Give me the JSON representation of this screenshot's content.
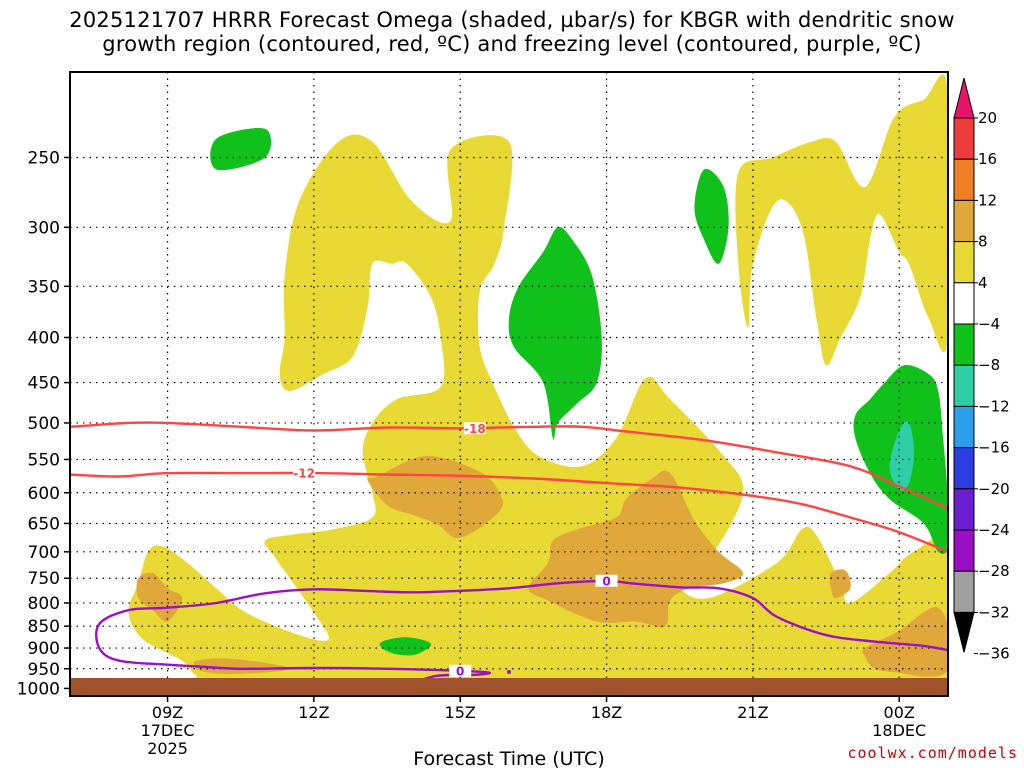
{
  "title_line1": "2025121707 HRRR Forecast Omega (shaded, µbar/s) for KBGR with dendritic snow",
  "title_line2": "growth region (contoured, red, ºC) and freezing level (contoured, purple, ºC)",
  "credit": "coolwx.com/models",
  "colors": {
    "yellow": "#e8d935",
    "orange_light": "#e0a83a",
    "green": "#11c11b",
    "teal": "#2ecfa6",
    "dsgz_red": "#ff4444",
    "freezing_purple": "#9b10c6",
    "ground": "#a0522d"
  },
  "chart_data": {
    "type": "heatmap",
    "title": "2025121707 HRRR Forecast Omega (shaded, µbar/s) for KBGR with dendritic snow growth region (contoured, red, ºC) and freezing level (contoured, purple, ºC)",
    "xlabel": "Forecast Time (UTC)",
    "ylabel": "",
    "x_range_hours": [
      7,
      25
    ],
    "y_range_hpa": [
      200,
      1020
    ],
    "y_scale": "log-pressure",
    "grid": true,
    "yticks": [
      250,
      300,
      350,
      400,
      450,
      500,
      550,
      600,
      650,
      700,
      750,
      800,
      850,
      900,
      950,
      1000
    ],
    "xticks": [
      {
        "hour": 9,
        "label": "09Z",
        "sub1": "17DEC",
        "sub2": "2025"
      },
      {
        "hour": 12,
        "label": "12Z",
        "sub1": "",
        "sub2": ""
      },
      {
        "hour": 15,
        "label": "15Z",
        "sub1": "",
        "sub2": ""
      },
      {
        "hour": 18,
        "label": "18Z",
        "sub1": "",
        "sub2": ""
      },
      {
        "hour": 21,
        "label": "21Z",
        "sub1": "",
        "sub2": ""
      },
      {
        "hour": 24,
        "label": "00Z",
        "sub1": "18DEC",
        "sub2": ""
      }
    ],
    "colorbar": {
      "labels": [
        "20",
        "16",
        "12",
        "8",
        "4",
        "−4",
        "−8",
        "−12",
        "−16",
        "−20",
        "−24",
        "−28",
        "−32",
        "−36"
      ],
      "colors": [
        "#e8146c",
        "#ee3b3b",
        "#ef7f24",
        "#e0a83a",
        "#e8d935",
        "#ffffff",
        "#11c11b",
        "#2ecfa6",
        "#2a9ee8",
        "#2b3fe0",
        "#6a1ed0",
        "#9b10c6",
        "#a0a0a0",
        "#000000"
      ]
    },
    "regions": [
      {
        "name": "omega 4-8",
        "color": "yellow",
        "points": [
          [
            11.4,
            340
          ],
          [
            11.7,
            280
          ],
          [
            12.5,
            240
          ],
          [
            13.2,
            240
          ],
          [
            14.0,
            280
          ],
          [
            14.8,
            295
          ],
          [
            14.8,
            245
          ],
          [
            16.0,
            240
          ],
          [
            15.9,
            300
          ],
          [
            15.7,
            330
          ],
          [
            15.4,
            355
          ],
          [
            15.4,
            410
          ],
          [
            15.7,
            455
          ],
          [
            16.1,
            505
          ],
          [
            16.6,
            545
          ],
          [
            17.5,
            560
          ],
          [
            18.2,
            520
          ],
          [
            18.8,
            445
          ],
          [
            19.3,
            470
          ],
          [
            20.4,
            545
          ],
          [
            20.8,
            600
          ],
          [
            20.2,
            700
          ],
          [
            19.5,
            760
          ],
          [
            20.1,
            790
          ],
          [
            21.5,
            720
          ],
          [
            22.0,
            660
          ],
          [
            22.3,
            670
          ],
          [
            22.8,
            760
          ],
          [
            23.0,
            800
          ],
          [
            23.8,
            740
          ],
          [
            24.3,
            700
          ],
          [
            25.0,
            690
          ],
          [
            25.0,
            1000
          ],
          [
            10.2,
            1000
          ],
          [
            9.6,
            968
          ],
          [
            9.3,
            930
          ],
          [
            8.5,
            880
          ],
          [
            8.2,
            820
          ],
          [
            8.4,
            760
          ],
          [
            8.6,
            700
          ],
          [
            8.9,
            690
          ],
          [
            9.4,
            720
          ],
          [
            10.0,
            770
          ],
          [
            10.6,
            820
          ],
          [
            11.7,
            870
          ],
          [
            12.3,
            880
          ],
          [
            12.0,
            820
          ],
          [
            11.2,
            710
          ],
          [
            11.0,
            680
          ],
          [
            11.5,
            670
          ],
          [
            12.4,
            660
          ],
          [
            13.2,
            640
          ],
          [
            13.2,
            600
          ],
          [
            13.0,
            540
          ],
          [
            13.2,
            500
          ],
          [
            13.7,
            470
          ],
          [
            14.6,
            455
          ],
          [
            14.6,
            400
          ],
          [
            14.4,
            360
          ],
          [
            13.9,
            330
          ],
          [
            13.6,
            330
          ],
          [
            13.2,
            330
          ],
          [
            13.1,
            370
          ],
          [
            12.8,
            420
          ],
          [
            12.2,
            440
          ],
          [
            11.5,
            460
          ],
          [
            11.3,
            440
          ],
          [
            11.4,
            400
          ]
        ]
      },
      {
        "name": "omega 4-8",
        "color": "yellow",
        "points": [
          [
            20.7,
            260
          ],
          [
            21.4,
            250
          ],
          [
            22.2,
            240
          ],
          [
            22.7,
            240
          ],
          [
            23.3,
            270
          ],
          [
            23.9,
            225
          ],
          [
            24.5,
            215
          ],
          [
            25.0,
            210
          ],
          [
            25.0,
            400
          ],
          [
            24.6,
            380
          ],
          [
            24.2,
            330
          ],
          [
            24.0,
            320
          ],
          [
            23.6,
            290
          ],
          [
            23.4,
            310
          ],
          [
            23.2,
            360
          ],
          [
            22.8,
            400
          ],
          [
            22.5,
            430
          ],
          [
            22.3,
            380
          ],
          [
            22.0,
            300
          ],
          [
            21.5,
            280
          ],
          [
            21.0,
            330
          ],
          [
            20.9,
            390
          ],
          [
            20.7,
            330
          ]
        ]
      },
      {
        "name": "omega 8-12",
        "color": "orange_light",
        "points": [
          [
            13.1,
            580
          ],
          [
            13.3,
            575
          ],
          [
            14.3,
            545
          ],
          [
            15.4,
            568
          ],
          [
            15.8,
            600
          ],
          [
            15.8,
            630
          ],
          [
            15.0,
            675
          ],
          [
            14.5,
            650
          ],
          [
            14.0,
            635
          ],
          [
            13.5,
            620
          ]
        ]
      },
      {
        "name": "omega 8-12",
        "color": "orange_light",
        "points": [
          [
            16.9,
            680
          ],
          [
            17.4,
            660
          ],
          [
            18.2,
            640
          ],
          [
            18.4,
            610
          ],
          [
            18.9,
            580
          ],
          [
            19.3,
            570
          ],
          [
            19.8,
            645
          ],
          [
            20.3,
            700
          ],
          [
            20.8,
            740
          ],
          [
            20.4,
            760
          ],
          [
            19.7,
            770
          ],
          [
            19.3,
            795
          ],
          [
            19.2,
            850
          ],
          [
            18.6,
            840
          ],
          [
            17.8,
            840
          ],
          [
            16.8,
            795
          ],
          [
            16.4,
            770
          ],
          [
            16.8,
            720
          ]
        ]
      },
      {
        "name": "omega 8-12",
        "color": "orange_light",
        "points": [
          [
            8.4,
            750
          ],
          [
            8.7,
            740
          ],
          [
            9.0,
            770
          ],
          [
            9.3,
            790
          ],
          [
            9.0,
            840
          ],
          [
            8.7,
            815
          ],
          [
            8.4,
            790
          ]
        ]
      },
      {
        "name": "omega 8-12",
        "color": "orange_light",
        "points": [
          [
            9.6,
            930
          ],
          [
            10.2,
            925
          ],
          [
            11.0,
            935
          ],
          [
            11.5,
            950
          ],
          [
            10.9,
            960
          ],
          [
            10.0,
            962
          ],
          [
            9.6,
            950
          ]
        ]
      },
      {
        "name": "omega 8-12",
        "color": "orange_light",
        "points": [
          [
            22.6,
            740
          ],
          [
            22.9,
            735
          ],
          [
            23.0,
            770
          ],
          [
            22.7,
            790
          ],
          [
            22.6,
            770
          ]
        ]
      },
      {
        "name": "omega 8-12",
        "color": "orange_light",
        "points": [
          [
            23.3,
            900
          ],
          [
            24.0,
            860
          ],
          [
            24.5,
            820
          ],
          [
            24.8,
            810
          ],
          [
            25.0,
            850
          ],
          [
            25.0,
            950
          ],
          [
            24.6,
            970
          ],
          [
            24.0,
            960
          ],
          [
            23.5,
            950
          ],
          [
            23.3,
            920
          ]
        ]
      },
      {
        "name": "omega -4 to -8",
        "color": "green",
        "points": [
          [
            10.0,
            238
          ],
          [
            11.0,
            232
          ],
          [
            11.0,
            250
          ],
          [
            10.0,
            258
          ]
        ]
      },
      {
        "name": "omega -4 to -8",
        "color": "green",
        "points": [
          [
            17.0,
            300
          ],
          [
            17.3,
            310
          ],
          [
            17.7,
            340
          ],
          [
            17.9,
            400
          ],
          [
            17.8,
            450
          ],
          [
            17.4,
            475
          ],
          [
            17.0,
            500
          ],
          [
            16.9,
            520
          ],
          [
            16.7,
            450
          ],
          [
            16.1,
            410
          ],
          [
            16.0,
            380
          ],
          [
            16.2,
            350
          ],
          [
            16.7,
            320
          ]
        ]
      },
      {
        "name": "omega -4 to -8",
        "color": "green",
        "points": [
          [
            20.0,
            258
          ],
          [
            20.4,
            270
          ],
          [
            20.5,
            300
          ],
          [
            20.3,
            330
          ],
          [
            20.0,
            310
          ],
          [
            19.8,
            285
          ]
        ]
      },
      {
        "name": "omega -4 to -8",
        "color": "green",
        "points": [
          [
            23.4,
            470
          ],
          [
            23.7,
            450
          ],
          [
            24.1,
            430
          ],
          [
            24.6,
            440
          ],
          [
            24.8,
            460
          ],
          [
            24.9,
            520
          ],
          [
            25.0,
            610
          ],
          [
            25.0,
            690
          ],
          [
            24.8,
            700
          ],
          [
            24.5,
            650
          ],
          [
            23.8,
            610
          ],
          [
            23.4,
            570
          ],
          [
            23.1,
            520
          ],
          [
            23.1,
            490
          ]
        ]
      },
      {
        "name": "omega -4 to -8",
        "color": "green",
        "points": [
          [
            13.4,
            885
          ],
          [
            13.9,
            875
          ],
          [
            14.4,
            890
          ],
          [
            14.1,
            915
          ],
          [
            13.7,
            915
          ],
          [
            13.4,
            900
          ]
        ]
      },
      {
        "name": "omega -8 to -12",
        "color": "teal",
        "points": [
          [
            24.0,
            510
          ],
          [
            24.2,
            500
          ],
          [
            24.3,
            540
          ],
          [
            24.2,
            585
          ],
          [
            24.0,
            595
          ],
          [
            23.8,
            560
          ]
        ]
      }
    ],
    "contours": [
      {
        "label": "-18",
        "color": "dsgz_red",
        "label_at": [
          15.3,
          507
        ],
        "points": [
          [
            7.0,
            505
          ],
          [
            8.2,
            500
          ],
          [
            9.0,
            500
          ],
          [
            10.5,
            505
          ],
          [
            12.0,
            510
          ],
          [
            13.5,
            506
          ],
          [
            15.0,
            507
          ],
          [
            16.5,
            505
          ],
          [
            17.5,
            505
          ],
          [
            18.5,
            512
          ],
          [
            20.0,
            523
          ],
          [
            21.5,
            540
          ],
          [
            23.0,
            560
          ],
          [
            24.0,
            590
          ],
          [
            25.0,
            625
          ]
        ]
      },
      {
        "label": "-12",
        "color": "dsgz_red",
        "label_at": [
          11.8,
          570
        ],
        "points": [
          [
            7.0,
            572
          ],
          [
            8.0,
            575
          ],
          [
            9.0,
            570
          ],
          [
            10.5,
            570
          ],
          [
            12.0,
            570
          ],
          [
            13.5,
            572
          ],
          [
            15.0,
            574
          ],
          [
            16.5,
            578
          ],
          [
            18.0,
            585
          ],
          [
            19.5,
            592
          ],
          [
            21.0,
            605
          ],
          [
            22.0,
            618
          ],
          [
            23.0,
            640
          ],
          [
            24.0,
            665
          ],
          [
            25.0,
            700
          ]
        ]
      },
      {
        "label": "0",
        "color": "freezing_purple",
        "label_at": [
          18.0,
          755
        ],
        "points": [
          [
            9.7,
            945
          ],
          [
            9.0,
            940
          ],
          [
            8.0,
            930
          ],
          [
            7.6,
            900
          ],
          [
            7.6,
            845
          ],
          [
            8.2,
            815
          ],
          [
            9.0,
            810
          ],
          [
            10.0,
            800
          ],
          [
            11.0,
            780
          ],
          [
            12.0,
            772
          ],
          [
            13.0,
            775
          ],
          [
            14.0,
            778
          ],
          [
            15.0,
            775
          ],
          [
            16.0,
            770
          ],
          [
            17.0,
            760
          ],
          [
            18.0,
            755
          ],
          [
            18.5,
            760
          ],
          [
            19.5,
            768
          ],
          [
            20.3,
            770
          ],
          [
            21.0,
            790
          ],
          [
            21.5,
            830
          ],
          [
            22.5,
            870
          ],
          [
            23.5,
            885
          ],
          [
            24.5,
            895
          ],
          [
            25.0,
            905
          ]
        ]
      },
      {
        "label": "0",
        "color": "freezing_purple",
        "label_at": [
          15.0,
          955
        ],
        "points": [
          [
            9.7,
            945
          ],
          [
            10.5,
            950
          ],
          [
            12.0,
            948
          ],
          [
            13.5,
            950
          ],
          [
            15.0,
            955
          ],
          [
            15.6,
            960
          ],
          [
            15.3,
            965
          ],
          [
            14.9,
            965
          ],
          [
            14.5,
            968
          ],
          [
            14.2,
            978
          ]
        ]
      }
    ],
    "small_dot": [
      16.0,
      958
    ]
  }
}
